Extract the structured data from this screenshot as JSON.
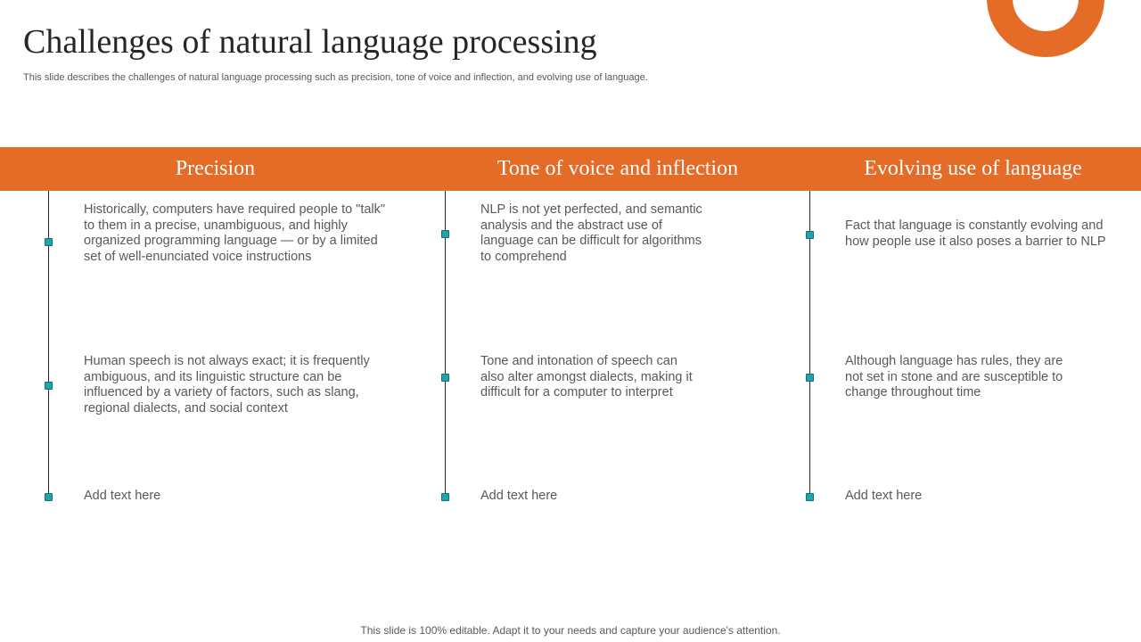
{
  "slide": {
    "title": "Challenges of natural language processing",
    "subtitle": "This slide describes the challenges of natural language processing such as precision, tone of voice and inflection, and evolving use of language.",
    "footer": "This slide is 100% editable. Adapt it to your needs and capture your audience's attention."
  },
  "colors": {
    "accent": "#e46c26",
    "node": "#1fa3ad",
    "title_text": "#262626",
    "body_text": "#595959"
  },
  "columns": [
    {
      "heading": "Precision",
      "points": [
        "Historically, computers have required people to \"talk\" to them in a precise, unambiguous, and highly organized programming language — or by a limited set of well-enunciated voice instructions",
        "Human speech is not always exact; it is frequently ambiguous, and its linguistic structure can be influenced by a variety of factors, such as slang, regional dialects, and social context",
        "Add text here"
      ]
    },
    {
      "heading": "Tone of voice and inflection",
      "points": [
        "NLP is not yet perfected, and semantic analysis and the abstract use of language can be difficult for algorithms to comprehend",
        "Tone and intonation of speech can also alter amongst dialects, making it difficult for a computer to interpret",
        "Add text here"
      ]
    },
    {
      "heading": "Evolving use of language",
      "points": [
        "Fact that language is constantly evolving and how people use it also poses a barrier to NLP",
        "Although language has rules, they are not set in stone and are susceptible to change  throughout time",
        "Add text here"
      ]
    }
  ]
}
